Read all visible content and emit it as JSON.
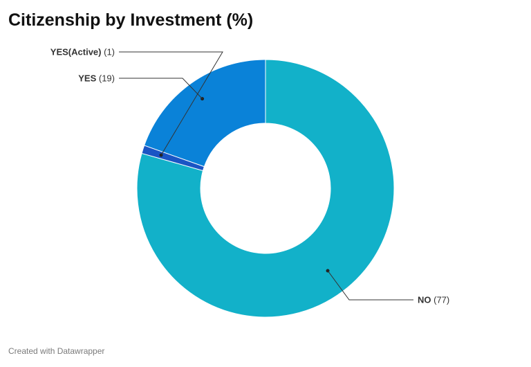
{
  "title": "Citizenship by Investment (%)",
  "footer": "Created with Datawrapper",
  "chart_data": {
    "type": "pie",
    "donut": true,
    "title": "Citizenship by Investment (%)",
    "slices": [
      {
        "label": "NO",
        "value": 77,
        "value_text": "(77)",
        "color": "#12b1c9"
      },
      {
        "label": "YES(Active)",
        "value": 1,
        "value_text": "(1)",
        "color": "#1a55c4"
      },
      {
        "label": "YES",
        "value": 19,
        "value_text": "(19)",
        "color": "#0a82d8"
      }
    ],
    "label_placement": "outside with leader lines"
  }
}
